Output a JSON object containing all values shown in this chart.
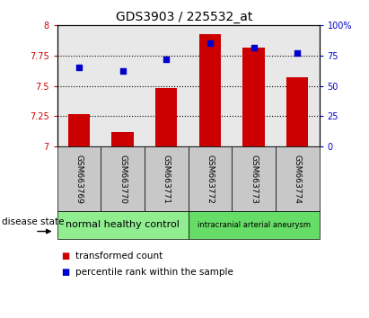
{
  "title": "GDS3903 / 225532_at",
  "samples": [
    "GSM663769",
    "GSM663770",
    "GSM663771",
    "GSM663772",
    "GSM663773",
    "GSM663774"
  ],
  "transformed_count": [
    7.27,
    7.12,
    7.48,
    7.93,
    7.82,
    7.57
  ],
  "percentile_rank": [
    65,
    62,
    72,
    85,
    82,
    77
  ],
  "ylim_left": [
    7.0,
    8.0
  ],
  "ylim_right": [
    0,
    100
  ],
  "yticks_left": [
    7.0,
    7.25,
    7.5,
    7.75,
    8.0
  ],
  "ytick_labels_left": [
    "7",
    "7.25",
    "7.5",
    "7.75",
    "8"
  ],
  "yticks_right": [
    0,
    25,
    50,
    75,
    100
  ],
  "ytick_labels_right": [
    "0",
    "25",
    "50",
    "75",
    "100%"
  ],
  "bar_color": "#cc0000",
  "dot_color": "#0000cc",
  "bar_width": 0.5,
  "groups": [
    {
      "label": "normal healthy control",
      "n": 3,
      "color": "#90ee90"
    },
    {
      "label": "intracranial arterial aneurysm",
      "n": 3,
      "color": "#66dd66"
    }
  ],
  "disease_state_label": "disease state",
  "legend_items": [
    {
      "label": "transformed count",
      "color": "#cc0000"
    },
    {
      "label": "percentile rank within the sample",
      "color": "#0000cc"
    }
  ],
  "plot_bg_color": "#e8e8e8",
  "tick_area_bg": "#c8c8c8",
  "title_fontsize": 10,
  "tick_label_fontsize": 7,
  "sample_label_fontsize": 6.5,
  "group_label_fontsize_0": 8,
  "group_label_fontsize_1": 6,
  "legend_fontsize": 7.5
}
